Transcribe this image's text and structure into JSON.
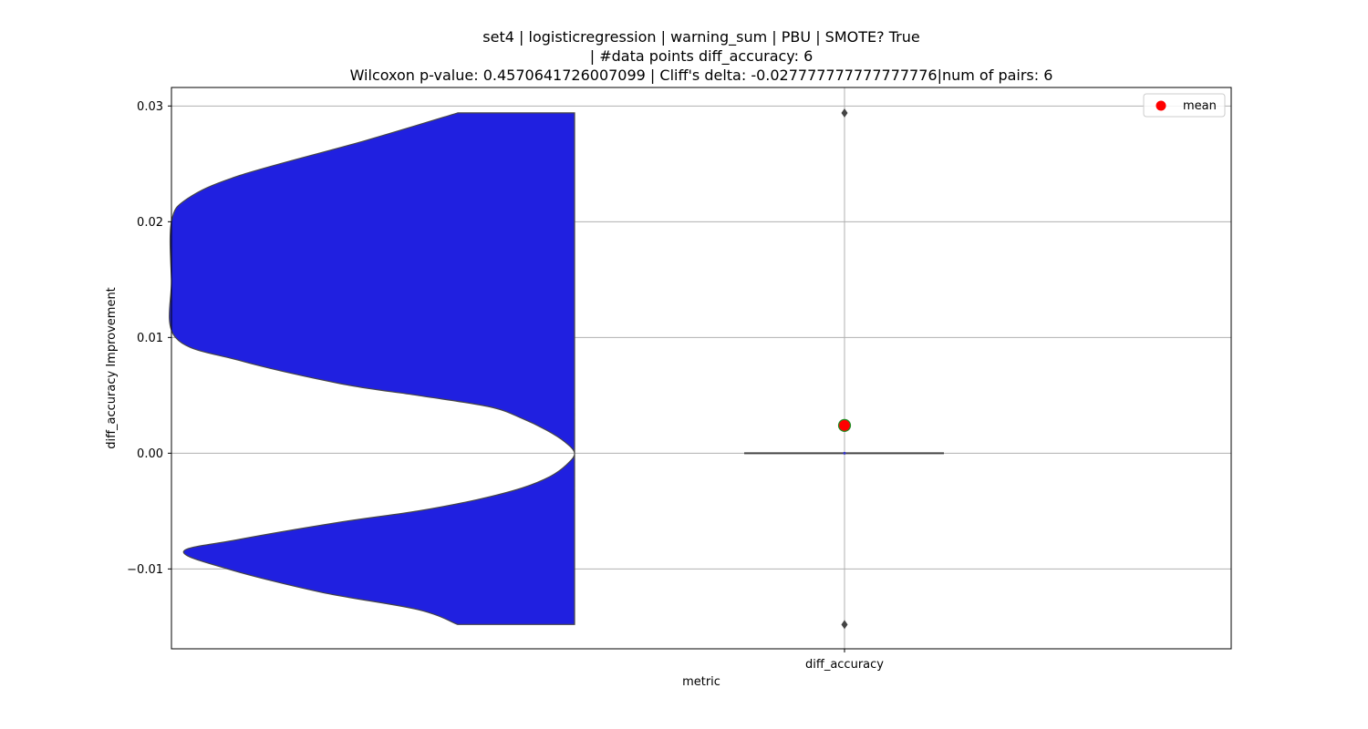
{
  "chart_data": {
    "type": "violin",
    "title_lines": [
      "set4 | logisticregression | warning_sum | PBU | SMOTE? True",
      "| #data points diff_accuracy: 6",
      "Wilcoxon p-value: 0.4570641726007099 | Cliff's delta: -0.027777777777777776|num of pairs: 6"
    ],
    "xlabel": "metric",
    "ylabel": "diff_accuracy Improvement",
    "categories": [
      "diff_accuracy"
    ],
    "ylim": [
      -0.0169,
      0.0316
    ],
    "yticks": [
      -0.01,
      0.0,
      0.01,
      0.02,
      0.03
    ],
    "ytick_labels": [
      "−0.01",
      "0.00",
      "0.01",
      "0.02",
      "0.03"
    ],
    "grid": true,
    "legend": {
      "position": "top-right",
      "entries": [
        {
          "label": "mean",
          "color": "#ff0000"
        }
      ]
    },
    "violin": {
      "color": "#2020e0",
      "edge_color": "#444444",
      "density_y": [
        0.0294,
        0.027,
        0.024,
        0.022,
        0.02,
        0.015,
        0.01,
        0.008,
        0.006,
        0.005,
        0.004,
        0.003,
        0.002,
        0.001,
        0.0,
        -0.001,
        -0.002,
        -0.003,
        -0.004,
        -0.005,
        -0.006,
        -0.0075,
        -0.0085,
        -0.01,
        -0.012,
        -0.0135,
        -0.0148
      ],
      "density_w": [
        0.29,
        0.52,
        0.83,
        0.96,
        1.0,
        1.0,
        0.99,
        0.83,
        0.58,
        0.39,
        0.21,
        0.13,
        0.07,
        0.025,
        0.0,
        0.02,
        0.06,
        0.13,
        0.24,
        0.39,
        0.59,
        0.84,
        0.97,
        0.86,
        0.63,
        0.39,
        0.29
      ]
    },
    "box": {
      "q1": 0.0,
      "median": 0.0,
      "q3": 0.0,
      "whisker_low": 0.0,
      "whisker_high": 0.0
    },
    "outliers": [
      0.0294,
      -0.0148
    ],
    "mean": {
      "value": 0.0024,
      "color": "#ff0000",
      "edge_color": "#228b22"
    }
  }
}
